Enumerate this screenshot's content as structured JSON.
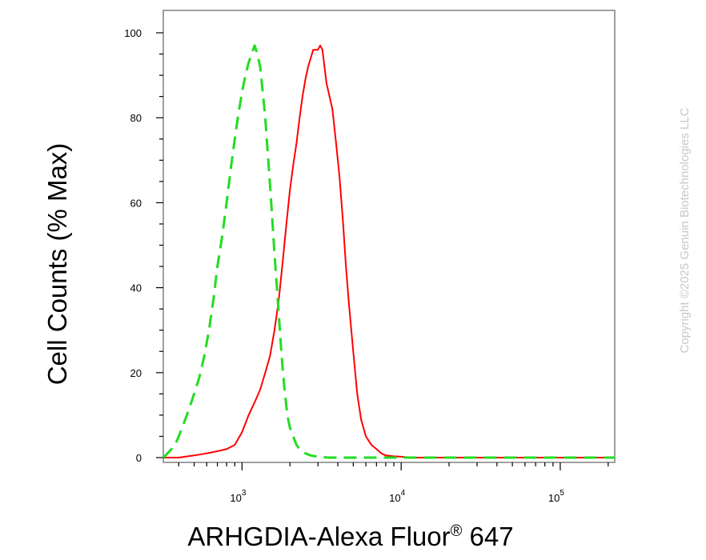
{
  "chart_data": {
    "type": "line",
    "title": "",
    "xlabel_main": "ARHGDIA-Alexa Fluor",
    "xlabel_reg": "®",
    "xlabel_tail": " 647",
    "ylabel": "Cell Counts (% Max)",
    "x_scale": "log",
    "xlim": [
      320,
      220000
    ],
    "ylim": [
      0,
      100
    ],
    "y_ticks": [
      0,
      20,
      40,
      60,
      80,
      100
    ],
    "x_ticks": [
      {
        "value": 1000,
        "base": "10",
        "exp": "3"
      },
      {
        "value": 10000,
        "base": "10",
        "exp": "4"
      },
      {
        "value": 100000,
        "base": "10",
        "exp": "5"
      }
    ],
    "grid": false,
    "legend": "none",
    "series": [
      {
        "color": "#ff0000",
        "style": "solid",
        "x": [
          320,
          400,
          500,
          600,
          700,
          800,
          900,
          1000,
          1100,
          1200,
          1300,
          1400,
          1500,
          1600,
          1700,
          1800,
          1900,
          2000,
          2100,
          2200,
          2300,
          2400,
          2500,
          2600,
          2700,
          2800,
          2900,
          3000,
          3100,
          3200,
          3300,
          3400,
          3500,
          3700,
          3900,
          4100,
          4300,
          4500,
          4700,
          5000,
          5300,
          5600,
          6000,
          6500,
          7000,
          7500,
          8000,
          9000,
          10000,
          12000,
          20000,
          50000,
          100000,
          220000
        ],
        "y": [
          0,
          0,
          0.5,
          1,
          1.5,
          2,
          3,
          6,
          10,
          13,
          16,
          20,
          24,
          30,
          37,
          46,
          55,
          63,
          69,
          74,
          80,
          85,
          89,
          92,
          94,
          96,
          96,
          96,
          97,
          96,
          92,
          88,
          86,
          82,
          74,
          66,
          56,
          45,
          36,
          25,
          15,
          9,
          5,
          3,
          2,
          1,
          0.5,
          0.3,
          0.2,
          0,
          0,
          0,
          0,
          0
        ]
      },
      {
        "color": "#22dd22",
        "style": "dashed",
        "x": [
          320,
          340,
          360,
          380,
          400,
          430,
          460,
          500,
          540,
          580,
          620,
          660,
          700,
          750,
          800,
          850,
          900,
          950,
          1000,
          1050,
          1100,
          1150,
          1200,
          1250,
          1300,
          1350,
          1400,
          1450,
          1500,
          1550,
          1600,
          1650,
          1700,
          1750,
          1800,
          1850,
          1900,
          1950,
          2000,
          2100,
          2200,
          2300,
          2500,
          2700,
          3000,
          3500,
          4000,
          5000,
          10000,
          100000,
          220000
        ],
        "y": [
          0,
          1,
          2,
          3,
          5,
          8,
          11,
          15,
          19,
          24,
          30,
          37,
          45,
          52,
          60,
          68,
          75,
          81,
          86,
          90,
          93,
          95,
          97,
          95,
          92,
          86,
          80,
          72,
          64,
          56,
          48,
          41,
          34,
          27,
          21,
          16,
          12,
          9,
          7,
          5,
          3,
          2,
          1,
          0.5,
          0.2,
          0,
          0,
          0,
          0,
          0,
          0
        ]
      }
    ]
  },
  "watermark": "Copyright ©2025 Genuin Biotechnologies LLC"
}
